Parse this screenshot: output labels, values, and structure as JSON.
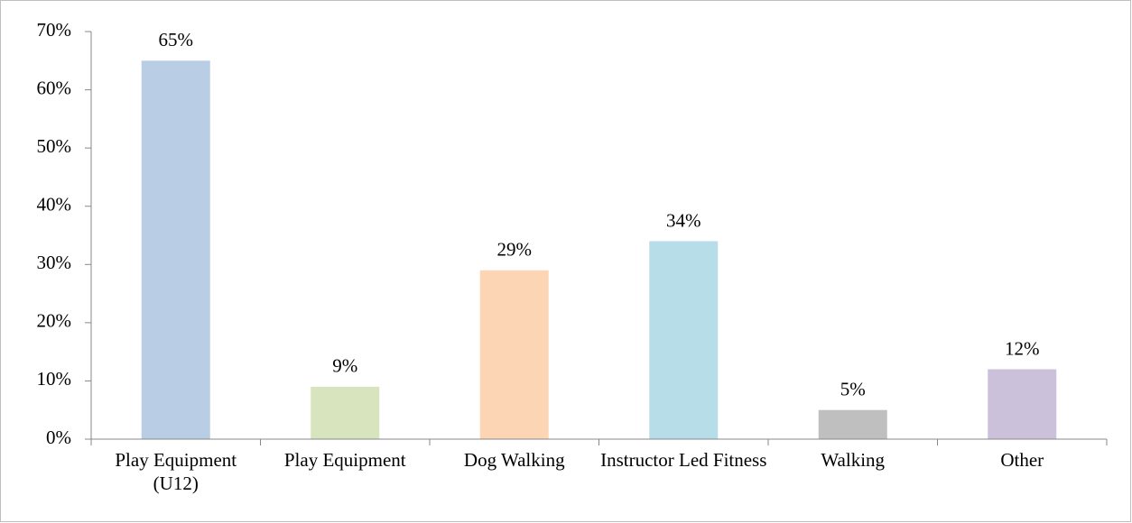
{
  "chart_data": {
    "type": "bar",
    "categories": [
      "Play Equipment (U12)",
      "Play Equipment",
      "Dog Walking",
      "Instructor Led Fitness",
      "Walking",
      "Other"
    ],
    "values": [
      65,
      9,
      29,
      34,
      5,
      12
    ],
    "value_labels": [
      "65%",
      "9%",
      "29%",
      "34%",
      "5%",
      "12%"
    ],
    "colors": [
      "#b9cde5",
      "#d7e4bd",
      "#fcd5b5",
      "#b7dee8",
      "#bfbfbf",
      "#ccc1da"
    ],
    "ylim": [
      0,
      70
    ],
    "yticks": [
      {
        "value": 0,
        "label": "0%"
      },
      {
        "value": 10,
        "label": "10%"
      },
      {
        "value": 20,
        "label": "20%"
      },
      {
        "value": 30,
        "label": "30%"
      },
      {
        "value": 40,
        "label": "40%"
      },
      {
        "value": 50,
        "label": "50%"
      },
      {
        "value": 60,
        "label": "60%"
      },
      {
        "value": 70,
        "label": "70%"
      }
    ],
    "grid": false
  }
}
